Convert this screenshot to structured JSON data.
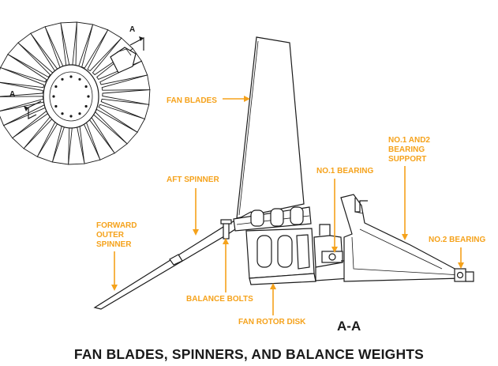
{
  "caption": "FAN BLADES, SPINNERS, AND BALANCE WEIGHTS",
  "section_label": "A-A",
  "section_markers": {
    "upper": "A",
    "lower": "A"
  },
  "callouts": {
    "fan_blades": "FAN BLADES",
    "aft_spinner": "AFT SPINNER",
    "forward_outer_spinner_1": "FORWARD",
    "forward_outer_spinner_2": "OUTER",
    "forward_outer_spinner_3": "SPINNER",
    "balance_bolts": "BALANCE BOLTS",
    "fan_rotor_disk": "FAN ROTOR DISK",
    "no1_bearing": "NO.1 BEARING",
    "bearing_support_1": "NO.1 AND2",
    "bearing_support_2": "BEARING",
    "bearing_support_3": "SUPPORT",
    "no2_bearing": "NO.2 BEARING"
  },
  "colors": {
    "callout": "#f5a21b",
    "ink": "#1a1a1a"
  }
}
